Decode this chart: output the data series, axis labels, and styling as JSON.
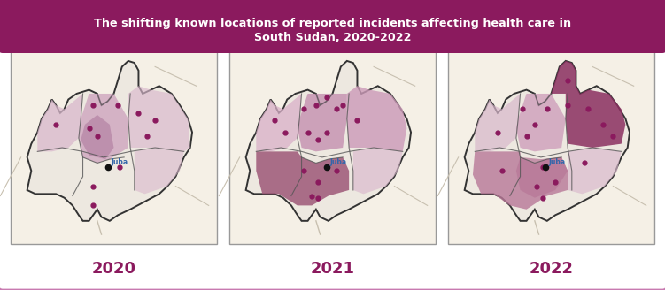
{
  "title_line1": "The shifting known locations of reported incidents affecting health care in",
  "title_line2": "South Sudan, 2020-2022",
  "title_bg": "#8B1A5E",
  "title_color": "#ffffff",
  "border_color": "#c87ab0",
  "years": [
    "2020",
    "2021",
    "2022"
  ],
  "year_color": "#8B1A5E",
  "map_bg": "#f5f0e6",
  "outer_bg": "#ffffff",
  "ss_fill": "#ede8e0",
  "ss_border": "#333333",
  "state_border": "#555555",
  "river_color": "#c8c0b0",
  "dot_color": "#8B1A5E",
  "juba_color": "#111111",
  "juba_label_color": "#3366aa"
}
